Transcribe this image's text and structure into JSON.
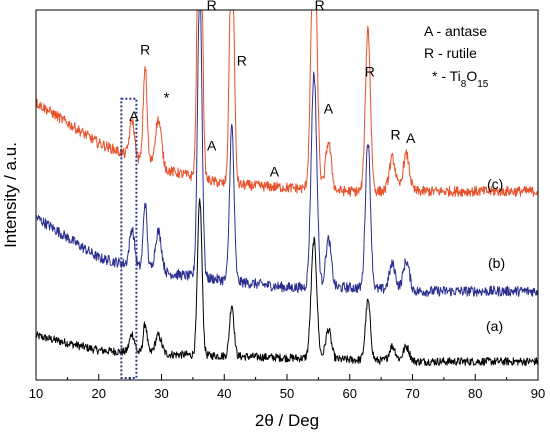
{
  "chart_data": {
    "type": "line",
    "xlabel": "2θ / Deg",
    "ylabel": "Intensity / a.u.",
    "xlim": [
      10,
      90
    ],
    "ylim": [
      0,
      100
    ],
    "x_ticks": [
      10,
      20,
      30,
      40,
      50,
      60,
      70,
      80,
      90
    ],
    "y_ticks": [],
    "grid": false,
    "legend": {
      "placement": "top-right",
      "lines": [
        {
          "key": "A",
          "text": " - antase"
        },
        {
          "key": "R",
          "text": " - rutile"
        },
        {
          "key": "*",
          "text": " - Ti",
          "sub": "8",
          "tail": "O",
          "sub2": "15"
        }
      ]
    },
    "series": [
      {
        "label": "(a)",
        "color": "#000000",
        "baseline": [
          [
            10,
            12
          ],
          [
            20,
            8
          ],
          [
            30,
            7
          ],
          [
            40,
            6.5
          ],
          [
            50,
            6
          ],
          [
            60,
            5.5
          ],
          [
            70,
            5
          ],
          [
            80,
            5
          ],
          [
            90,
            5
          ]
        ],
        "peaks": [
          {
            "x": 25.3,
            "h": 5,
            "w": 0.4
          },
          {
            "x": 27.4,
            "h": 8,
            "w": 0.3
          },
          {
            "x": 29.5,
            "h": 5,
            "w": 0.5
          },
          {
            "x": 36.1,
            "h": 42,
            "w": 0.35
          },
          {
            "x": 41.2,
            "h": 14,
            "w": 0.35
          },
          {
            "x": 54.3,
            "h": 32,
            "w": 0.45
          },
          {
            "x": 56.6,
            "h": 8,
            "w": 0.45
          },
          {
            "x": 62.9,
            "h": 16,
            "w": 0.4
          },
          {
            "x": 66.8,
            "h": 4,
            "w": 0.5
          },
          {
            "x": 69.0,
            "h": 4,
            "w": 0.5
          }
        ]
      },
      {
        "label": "(b)",
        "color": "#2a2f8f",
        "baseline": [
          [
            10,
            44
          ],
          [
            20,
            33
          ],
          [
            30,
            29
          ],
          [
            40,
            27
          ],
          [
            50,
            25
          ],
          [
            60,
            25
          ],
          [
            70,
            24
          ],
          [
            80,
            24
          ],
          [
            90,
            24
          ]
        ],
        "peaks": [
          {
            "x": 25.3,
            "h": 10,
            "w": 0.4
          },
          {
            "x": 27.4,
            "h": 18,
            "w": 0.3
          },
          {
            "x": 29.5,
            "h": 11,
            "w": 0.5
          },
          {
            "x": 36.1,
            "h": 78,
            "w": 0.35
          },
          {
            "x": 41.2,
            "h": 42,
            "w": 0.35
          },
          {
            "x": 54.3,
            "h": 58,
            "w": 0.45
          },
          {
            "x": 56.6,
            "h": 13,
            "w": 0.45
          },
          {
            "x": 62.9,
            "h": 40,
            "w": 0.4
          },
          {
            "x": 66.8,
            "h": 7,
            "w": 0.5
          },
          {
            "x": 69.0,
            "h": 8,
            "w": 0.5
          }
        ]
      },
      {
        "label": "(c)",
        "color": "#e8502a",
        "baseline": [
          [
            10,
            75
          ],
          [
            20,
            64
          ],
          [
            30,
            57
          ],
          [
            40,
            53
          ],
          [
            50,
            52
          ],
          [
            60,
            51
          ],
          [
            70,
            51
          ],
          [
            80,
            51
          ],
          [
            90,
            51
          ]
        ],
        "peaks": [
          {
            "x": 25.3,
            "h": 10,
            "w": 0.4
          },
          {
            "x": 27.4,
            "h": 26,
            "w": 0.3
          },
          {
            "x": 29.5,
            "h": 13,
            "w": 0.5
          },
          {
            "x": 36.1,
            "h": 103,
            "w": 0.35
          },
          {
            "x": 41.2,
            "h": 71,
            "w": 0.35
          },
          {
            "x": 54.3,
            "h": 74,
            "w": 0.45
          },
          {
            "x": 56.6,
            "h": 13,
            "w": 0.45
          },
          {
            "x": 62.9,
            "h": 44,
            "w": 0.4
          },
          {
            "x": 66.8,
            "h": 9,
            "w": 0.5
          },
          {
            "x": 69.0,
            "h": 10,
            "w": 0.5
          }
        ]
      }
    ],
    "annotations": [
      {
        "text": "A",
        "x": 25.6,
        "y": 70
      },
      {
        "text": "R",
        "x": 27.4,
        "y": 88
      },
      {
        "text": "*",
        "x": 30.8,
        "y": 75
      },
      {
        "text": "R",
        "x": 38.0,
        "y": 100
      },
      {
        "text": "A",
        "x": 38.0,
        "y": 62
      },
      {
        "text": "R",
        "x": 42.8,
        "y": 85
      },
      {
        "text": "A",
        "x": 48.0,
        "y": 55
      },
      {
        "text": "R",
        "x": 55.2,
        "y": 100
      },
      {
        "text": "A",
        "x": 56.6,
        "y": 72
      },
      {
        "text": "R",
        "x": 63.2,
        "y": 82
      },
      {
        "text": "R",
        "x": 67.3,
        "y": 65
      },
      {
        "text": "A",
        "x": 69.7,
        "y": 64
      }
    ],
    "highlight_box": {
      "x0": 23.6,
      "x1": 26.0,
      "y0": 0,
      "y1": 76,
      "color": "#2a3a8f"
    }
  }
}
